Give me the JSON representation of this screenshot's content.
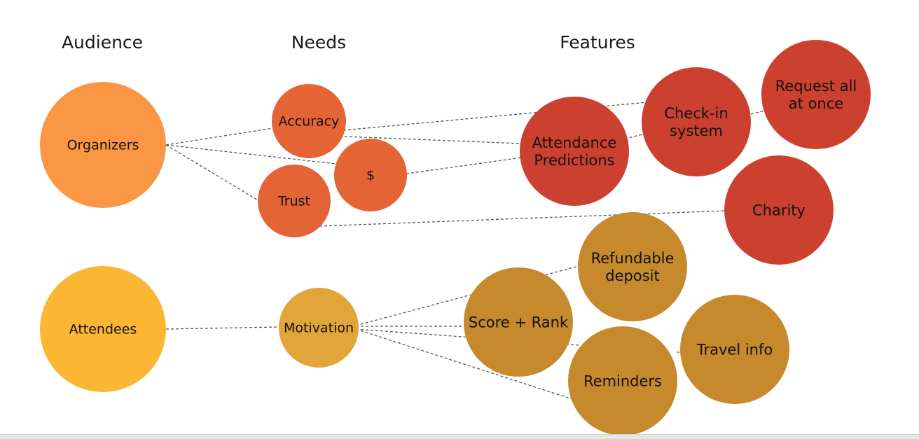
{
  "headers": {
    "audience": "Audience",
    "needs": "Needs",
    "features": "Features"
  },
  "colors": {
    "organizers": "#FB9645",
    "attendees": "#FBB734",
    "needs_orange": "#E56436",
    "motivation": "#E2A53A",
    "features_red": "#CB402E",
    "features_gold": "#C6892C",
    "line": "#555555"
  },
  "nodes": [
    {
      "id": "organizers",
      "label": [
        "Organizers"
      ],
      "color": "organizers"
    },
    {
      "id": "attendees",
      "label": [
        "Attendees"
      ],
      "color": "attendees"
    },
    {
      "id": "accuracy",
      "label": [
        "Accuracy"
      ],
      "color": "needs_orange"
    },
    {
      "id": "dollar",
      "label": [
        "$"
      ],
      "color": "needs_orange"
    },
    {
      "id": "trust",
      "label": [
        "Trust"
      ],
      "color": "needs_orange"
    },
    {
      "id": "motivation",
      "label": [
        "Motivation"
      ],
      "color": "motivation"
    },
    {
      "id": "attendance",
      "label": [
        "Attendance",
        "Predictions"
      ],
      "color": "features_red"
    },
    {
      "id": "checkin",
      "label": [
        "Check-in",
        "system"
      ],
      "color": "features_red"
    },
    {
      "id": "request",
      "label": [
        "Request all",
        "at once"
      ],
      "color": "features_red"
    },
    {
      "id": "charity",
      "label": [
        "Charity"
      ],
      "color": "features_red"
    },
    {
      "id": "refundable",
      "label": [
        "Refundable",
        "deposit"
      ],
      "color": "features_gold"
    },
    {
      "id": "score",
      "label": [
        "Score + Rank"
      ],
      "color": "features_gold"
    },
    {
      "id": "reminders",
      "label": [
        "Reminders"
      ],
      "color": "features_gold"
    },
    {
      "id": "travel",
      "label": [
        "Travel info"
      ],
      "color": "features_gold"
    }
  ],
  "edges": [
    {
      "from": "organizers",
      "to": "accuracy"
    },
    {
      "from": "organizers",
      "to": "dollar"
    },
    {
      "from": "organizers",
      "to": "trust"
    },
    {
      "from": "accuracy",
      "to": "checkin"
    },
    {
      "from": "accuracy",
      "to": "attendance"
    },
    {
      "from": "dollar",
      "to": "attendance"
    },
    {
      "from": "attendance",
      "to": "checkin"
    },
    {
      "from": "checkin",
      "to": "request"
    },
    {
      "from": "trust",
      "to": "charity"
    },
    {
      "from": "attendees",
      "to": "motivation"
    },
    {
      "from": "motivation",
      "to": "refundable"
    },
    {
      "from": "motivation",
      "to": "score"
    },
    {
      "from": "motivation",
      "to": "reminders"
    },
    {
      "from": "motivation",
      "to": "reminders"
    },
    {
      "from": "reminders",
      "to": "travel"
    }
  ]
}
